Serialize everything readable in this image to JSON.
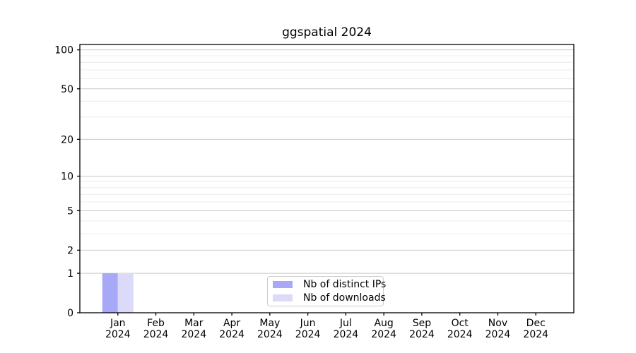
{
  "figure": {
    "background": "#ffffff"
  },
  "chart_data": {
    "type": "bar",
    "title": "ggspatial 2024",
    "categories": [
      "Jan",
      "Feb",
      "Mar",
      "Apr",
      "May",
      "Jun",
      "Jul",
      "Aug",
      "Sep",
      "Oct",
      "Nov",
      "Dec"
    ],
    "x_tick_year": "2024",
    "series": [
      {
        "name": "Nb of distinct IPs",
        "color": "#a8a8f8",
        "values": [
          1,
          0,
          0,
          0,
          0,
          0,
          0,
          0,
          0,
          0,
          0,
          0
        ]
      },
      {
        "name": "Nb of downloads",
        "color": "#dbdbf9",
        "values": [
          1,
          0,
          0,
          0,
          0,
          0,
          0,
          0,
          0,
          0,
          0,
          0
        ]
      }
    ],
    "y_scale": "log1p",
    "ylim": [
      0,
      110
    ],
    "xlim": [
      -1,
      12
    ],
    "y_major_ticks": [
      0,
      1,
      2,
      5,
      10,
      20,
      50,
      100
    ],
    "y_minor_gridlines": [
      3,
      4,
      6,
      7,
      8,
      9,
      30,
      40,
      60,
      70,
      80,
      90
    ],
    "grid": {
      "major_color": "#c9c9c9",
      "minor_color": "#ececec",
      "on": true
    },
    "axis_color": "#000000",
    "tick_label_color": "#000000",
    "legend_position": "lower center"
  }
}
